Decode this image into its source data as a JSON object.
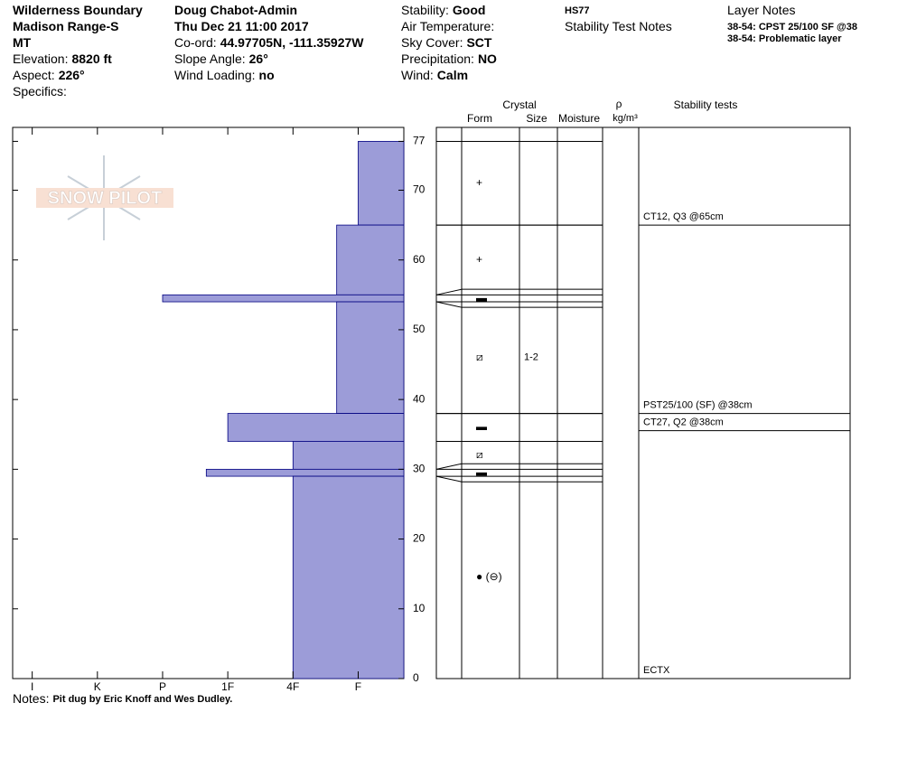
{
  "header": {
    "columns": [
      [
        {
          "value": "Wilderness Boundary"
        },
        {
          "value": "Madison Range-S"
        },
        {
          "value": "MT"
        },
        {
          "label": "Elevation:",
          "value": "8820 ft"
        },
        {
          "label": "Aspect:",
          "value": "226°"
        },
        {
          "label": "Specifics:"
        }
      ],
      [
        {
          "value": "Doug Chabot-Admin"
        },
        {
          "value": "Thu Dec 21 11:00 2017"
        },
        {
          "label": "Co-ord:",
          "value": "44.97705N, -111.35927W"
        },
        {
          "label": "Slope Angle:",
          "value": "26°"
        },
        {
          "label": "Wind Loading:",
          "value": "no"
        }
      ],
      [
        {
          "label": "Stability:",
          "value": "Good"
        },
        {
          "label": "Air Temperature:"
        },
        {
          "label": "Sky Cover:",
          "value": "SCT"
        },
        {
          "label": "Precipitation:",
          "value": "NO"
        },
        {
          "label": "Wind:",
          "value": "Calm"
        }
      ],
      [
        {
          "value": "HS77",
          "small": true
        },
        {
          "label": "Stability Test Notes"
        }
      ],
      [
        {
          "label": "Layer Notes"
        },
        {
          "value": "38-54: CPST 25/100 SF @38",
          "small": true
        },
        {
          "value": "38-54: Problematic layer",
          "small": true
        }
      ]
    ]
  },
  "logo": "SNOW PILOT",
  "chart_data": {
    "type": "profile",
    "xlim": [
      6.3,
      0.3
    ],
    "xticks": [
      {
        "value": 6,
        "label": "I"
      },
      {
        "value": 5,
        "label": "K"
      },
      {
        "value": 4,
        "label": "P"
      },
      {
        "value": 3,
        "label": "1F"
      },
      {
        "value": 2,
        "label": "4F"
      },
      {
        "value": 1,
        "label": "F"
      }
    ],
    "ylim": [
      0,
      79
    ],
    "yticks": [
      0,
      10,
      20,
      30,
      40,
      50,
      60,
      70,
      77
    ],
    "color": "#9c9cd8",
    "layers": [
      {
        "bottom": 65,
        "top": 77,
        "hardness": 1,
        "form": "+"
      },
      {
        "bottom": 55,
        "top": 65,
        "hardness": 1.33,
        "form": "+"
      },
      {
        "bottom": 54,
        "top": 55,
        "hardness": 4,
        "form": "▬"
      },
      {
        "bottom": 38,
        "top": 54,
        "hardness": 1.33,
        "form": "⧄",
        "size": "1-2"
      },
      {
        "bottom": 34,
        "top": 38,
        "hardness": 3,
        "form": "▬"
      },
      {
        "bottom": 30,
        "top": 34,
        "hardness": 2,
        "form": "⧄"
      },
      {
        "bottom": 29,
        "top": 30,
        "hardness": 3.33,
        "form": "▬"
      },
      {
        "bottom": 0,
        "top": 29,
        "hardness": 2,
        "form": "● (⊖)"
      }
    ],
    "columns": {
      "crystal": "Crystal",
      "form": "Form",
      "size": "Size",
      "moisture": "Moisture",
      "density": "ρ",
      "density_unit": "kg/m³",
      "tests": "Stability tests"
    },
    "tests": [
      {
        "text": "CT12, Q3 @65cm",
        "height": 65
      },
      {
        "text": "PST25/100 (SF) @38cm",
        "height": 38
      },
      {
        "text": "CT27, Q2 @38cm",
        "height": 38
      },
      {
        "text": "ECTX"
      }
    ]
  },
  "notes": {
    "label": "Notes:",
    "text": "Pit dug by Eric Knoff and Wes Dudley."
  }
}
